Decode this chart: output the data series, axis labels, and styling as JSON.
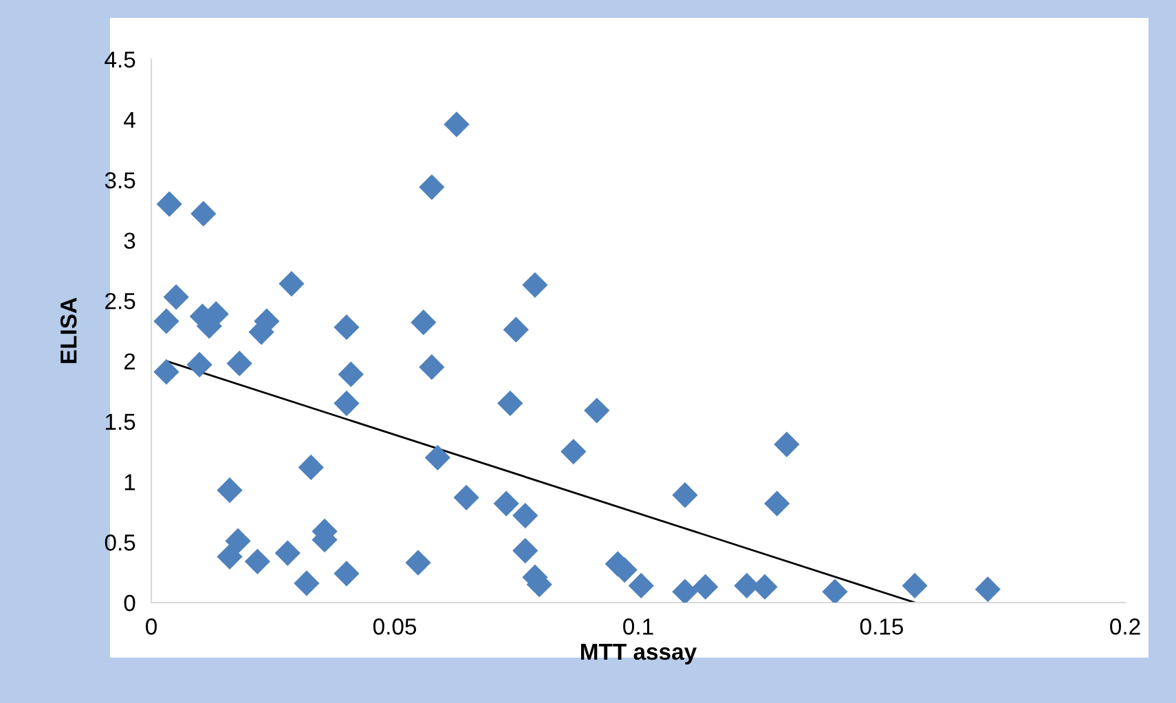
{
  "chart_data": {
    "type": "scatter",
    "xlabel": "MTT assay",
    "ylabel": "ELISA",
    "xlim": [
      0,
      0.2
    ],
    "xticks": [
      0,
      0.05,
      0.1,
      0.15,
      0.2
    ],
    "ylim": [
      0,
      4.5
    ],
    "yticks": [
      0,
      0.5,
      1,
      1.5,
      2,
      2.5,
      3,
      3.5,
      4,
      4.5
    ],
    "grid": false,
    "legend": false,
    "series": [
      {
        "marker": "diamond",
        "color": "#4f81bd",
        "x": [
          0.0037,
          0.0107,
          0.0051,
          0.0031,
          0.0105,
          0.0133,
          0.0119,
          0.0031,
          0.0099,
          0.0181,
          0.0237,
          0.0226,
          0.0288,
          0.0401,
          0.041,
          0.0401,
          0.0161,
          0.0328,
          0.0178,
          0.0161,
          0.0218,
          0.028,
          0.0356,
          0.0356,
          0.0319,
          0.0401,
          0.0627,
          0.0576,
          0.0559,
          0.0576,
          0.0588,
          0.0647,
          0.0548,
          0.0788,
          0.0749,
          0.0737,
          0.0729,
          0.0768,
          0.0768,
          0.0788,
          0.0797,
          0.0915,
          0.0867,
          0.0958,
          0.0972,
          0.1006,
          0.1096,
          0.1096,
          0.1138,
          0.1223,
          0.126,
          0.1305,
          0.1285,
          0.1404,
          0.1568,
          0.1718
        ],
        "values": [
          3.3,
          3.22,
          2.53,
          2.33,
          2.37,
          2.39,
          2.29,
          1.91,
          1.97,
          1.98,
          2.33,
          2.24,
          2.64,
          2.28,
          1.89,
          1.65,
          0.93,
          1.12,
          0.51,
          0.38,
          0.34,
          0.41,
          0.59,
          0.52,
          0.16,
          0.24,
          3.96,
          3.44,
          2.32,
          1.95,
          1.2,
          0.87,
          0.33,
          2.63,
          2.26,
          1.65,
          0.82,
          0.72,
          0.43,
          0.21,
          0.15,
          1.59,
          1.25,
          0.32,
          0.27,
          0.14,
          0.89,
          0.09,
          0.13,
          0.14,
          0.13,
          1.31,
          0.82,
          0.09,
          0.14,
          0.11
        ]
      },
      {
        "type": "line",
        "color": "#000000",
        "x": [
          0.0031,
          0.1568
        ],
        "values": [
          2.0,
          0.0
        ]
      }
    ]
  }
}
